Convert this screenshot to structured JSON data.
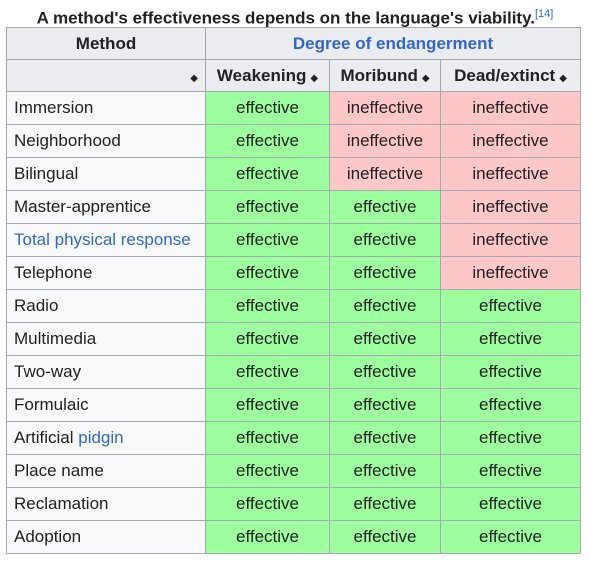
{
  "caption": {
    "text": "A method's effectiveness depends on the language's viability.",
    "ref": "[14]"
  },
  "header": {
    "method_label": "Method",
    "group_label": "Degree of endangerment",
    "columns": [
      "Weakening",
      "Moribund",
      "Dead/extinct"
    ],
    "sort_icon": "◆"
  },
  "colors": {
    "effective": "#9eff9e",
    "ineffective": "#ffc7c7",
    "link": "#3366cc",
    "header_bg": "#eaecf0",
    "border": "#a2a9b1"
  },
  "rows": [
    {
      "method": "Immersion",
      "values": [
        "effective",
        "ineffective",
        "ineffective"
      ]
    },
    {
      "method": "Neighborhood",
      "values": [
        "effective",
        "ineffective",
        "ineffective"
      ]
    },
    {
      "method": "Bilingual",
      "values": [
        "effective",
        "ineffective",
        "ineffective"
      ]
    },
    {
      "method": "Master-apprentice",
      "values": [
        "effective",
        "effective",
        "ineffective"
      ]
    },
    {
      "method": "Total physical response",
      "link": true,
      "values": [
        "effective",
        "effective",
        "ineffective"
      ]
    },
    {
      "method": "Telephone",
      "values": [
        "effective",
        "effective",
        "ineffective"
      ]
    },
    {
      "method": "Radio",
      "values": [
        "effective",
        "effective",
        "effective"
      ]
    },
    {
      "method": "Multimedia",
      "values": [
        "effective",
        "effective",
        "effective"
      ]
    },
    {
      "method": "Two-way",
      "values": [
        "effective",
        "effective",
        "effective"
      ]
    },
    {
      "method": "Formulaic",
      "values": [
        "effective",
        "effective",
        "effective"
      ]
    },
    {
      "method_prefix": "Artificial ",
      "method_link": "pidgin",
      "values": [
        "effective",
        "effective",
        "effective"
      ]
    },
    {
      "method": "Place name",
      "values": [
        "effective",
        "effective",
        "effective"
      ]
    },
    {
      "method": "Reclamation",
      "values": [
        "effective",
        "effective",
        "effective"
      ]
    },
    {
      "method": "Adoption",
      "values": [
        "effective",
        "effective",
        "effective"
      ]
    }
  ]
}
